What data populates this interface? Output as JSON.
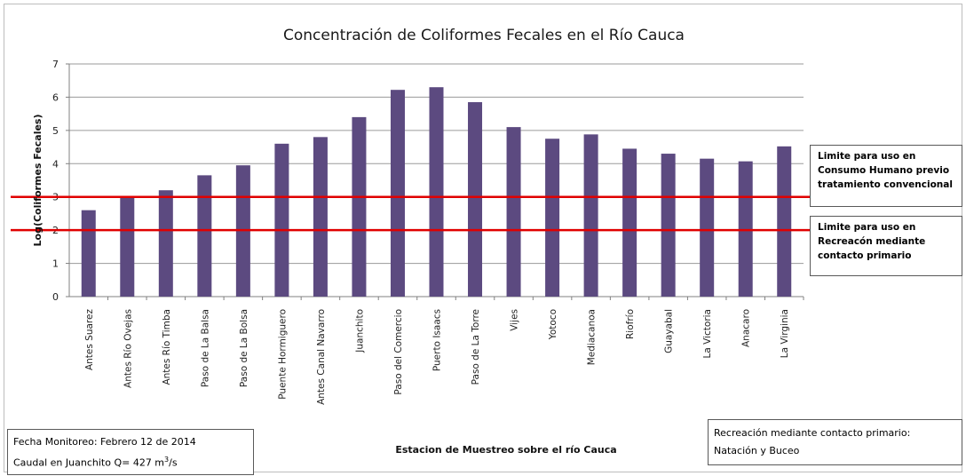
{
  "chart_data": {
    "type": "bar",
    "title": "Concentración de Coliformes Fecales en el Río Cauca",
    "xlabel": "Estacion de Muestreo sobre el río Cauca",
    "ylabel": "Log(Coliformes Fecales)",
    "ylim": [
      0,
      7
    ],
    "yticks": [
      "0",
      "1",
      "2",
      "3",
      "4",
      "5",
      "6",
      "7"
    ],
    "grid": true,
    "bar_color": "#5c4a80",
    "categories": [
      "Antes Suarez",
      "Antes Río Ovejas",
      "Antes Río Timba",
      "Paso de La Balsa",
      "Paso de La Bolsa",
      "Puente Hormiguero",
      "Antes Canal Navarro",
      "Juanchito",
      "Paso del Comercio",
      "Puerto Isaacs",
      "Paso de La Torre",
      "Vijes",
      "Yotoco",
      "Mediacanoa",
      "Riofrío",
      "Guayabal",
      "La Victoria",
      "Anacaro",
      "La Virginia"
    ],
    "values": [
      2.6,
      3.0,
      3.2,
      3.65,
      3.95,
      4.6,
      4.8,
      5.4,
      6.22,
      6.3,
      5.85,
      5.1,
      4.75,
      4.88,
      4.45,
      4.3,
      4.15,
      4.07,
      4.52
    ],
    "reference_lines": [
      {
        "value": 3,
        "color": "#e00000",
        "label_lines": [
          "Limite para uso en",
          "Consumo Humano previo",
          "tratamiento convencional"
        ]
      },
      {
        "value": 2,
        "color": "#e00000",
        "label_lines": [
          "Limite para uso en",
          "Recreacón mediante",
          "contacto primario"
        ]
      }
    ]
  },
  "info_box": {
    "line1": "Fecha Monitoreo: Febrero 12 de 2014",
    "line2_prefix": "Caudal en Juanchito Q=  427 m",
    "line2_sup": "3",
    "line2_suffix": "/s"
  },
  "recreation_box": {
    "line1": "Recreación mediante contacto primario:",
    "line2": "Natación y Buceo"
  }
}
